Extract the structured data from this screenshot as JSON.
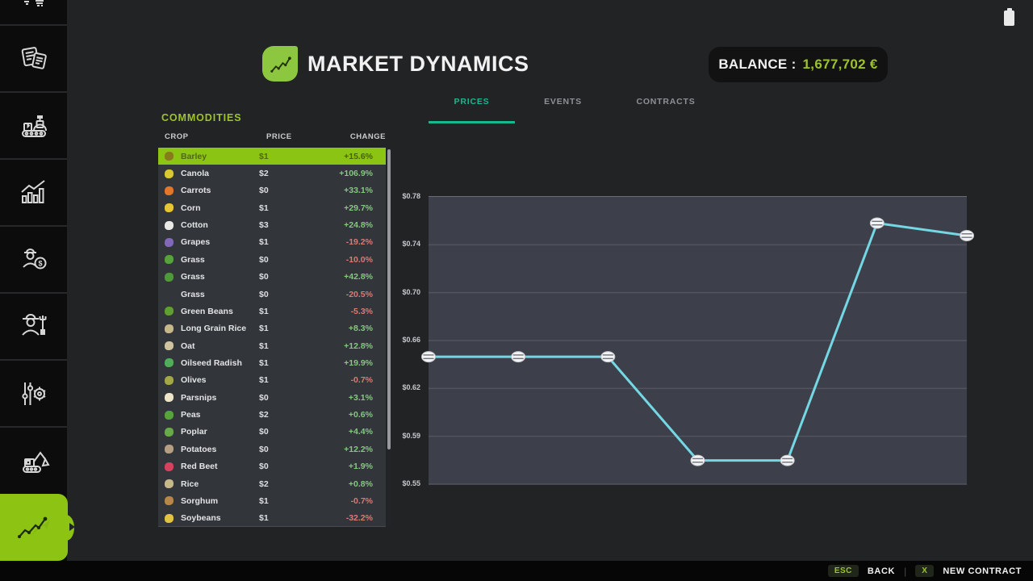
{
  "header": {
    "title": "MARKET DYNAMICS",
    "balance_label": "BALANCE :",
    "balance_value": "1,677,702 €",
    "title_icon": "market-chart-icon",
    "battery_icon": "battery-icon"
  },
  "tabs": [
    {
      "label": "PRICES",
      "active": true
    },
    {
      "label": "EVENTS",
      "active": false
    },
    {
      "label": "CONTRACTS",
      "active": false
    }
  ],
  "sidebar": {
    "items": [
      {
        "icon": "cropped-top-icon",
        "active": false
      },
      {
        "icon": "documents-icon",
        "active": false
      },
      {
        "icon": "production-icon",
        "active": false
      },
      {
        "icon": "statistics-icon",
        "active": false
      },
      {
        "icon": "sales-icon",
        "active": false
      },
      {
        "icon": "farmer-icon",
        "active": false
      },
      {
        "icon": "settings-icon",
        "active": false
      },
      {
        "icon": "excavator-icon",
        "active": false
      },
      {
        "icon": "market-icon",
        "active": true
      }
    ]
  },
  "commodities": {
    "heading": "COMMODITIES",
    "columns": {
      "crop": "CROP",
      "price": "PRICE",
      "change": "CHANGE"
    },
    "rows": [
      {
        "crop": "Barley",
        "price": "$1",
        "change": "+15.6%",
        "icon": "barley-icon",
        "icon_color": "#8a7a1e",
        "selected": true
      },
      {
        "crop": "Canola",
        "price": "$2",
        "change": "+106.9%",
        "icon": "canola-icon",
        "icon_color": "#d9c832"
      },
      {
        "crop": "Carrots",
        "price": "$0",
        "change": "+33.1%",
        "icon": "carrot-icon",
        "icon_color": "#e2762a"
      },
      {
        "crop": "Corn",
        "price": "$1",
        "change": "+29.7%",
        "icon": "corn-icon",
        "icon_color": "#e8c531"
      },
      {
        "crop": "Cotton",
        "price": "$3",
        "change": "+24.8%",
        "icon": "cotton-icon",
        "icon_color": "#e9e9e6"
      },
      {
        "crop": "Grapes",
        "price": "$1",
        "change": "-19.2%",
        "icon": "grapes-icon",
        "icon_color": "#8268b8"
      },
      {
        "crop": "Grass",
        "price": "$0",
        "change": "-10.0%",
        "icon": "grass-icon",
        "icon_color": "#55a33c"
      },
      {
        "crop": "Grass",
        "price": "$0",
        "change": "+42.8%",
        "icon": "grass-icon",
        "icon_color": "#4f9a38"
      },
      {
        "crop": "Grass",
        "price": "$0",
        "change": "-20.5%",
        "icon": null,
        "icon_color": null
      },
      {
        "crop": "Green Beans",
        "price": "$1",
        "change": "-5.3%",
        "icon": "green-beans-icon",
        "icon_color": "#5f9e33"
      },
      {
        "crop": "Long Grain Rice",
        "price": "$1",
        "change": "+8.3%",
        "icon": "long-grain-rice-icon",
        "icon_color": "#c7b88a"
      },
      {
        "crop": "Oat",
        "price": "$1",
        "change": "+12.8%",
        "icon": "oat-icon",
        "icon_color": "#cfc3a0"
      },
      {
        "crop": "Oilseed Radish",
        "price": "$1",
        "change": "+19.9%",
        "icon": "oilseed-radish-icon",
        "icon_color": "#4fae57"
      },
      {
        "crop": "Olives",
        "price": "$1",
        "change": "-0.7%",
        "icon": "olives-icon",
        "icon_color": "#a3a845"
      },
      {
        "crop": "Parsnips",
        "price": "$0",
        "change": "+3.1%",
        "icon": "parsnip-icon",
        "icon_color": "#ece5c8"
      },
      {
        "crop": "Peas",
        "price": "$2",
        "change": "+0.6%",
        "icon": "peas-icon",
        "icon_color": "#56a53b"
      },
      {
        "crop": "Poplar",
        "price": "$0",
        "change": "+4.4%",
        "icon": "poplar-icon",
        "icon_color": "#69aa48"
      },
      {
        "crop": "Potatoes",
        "price": "$0",
        "change": "+12.2%",
        "icon": "potato-icon",
        "icon_color": "#b59f82"
      },
      {
        "crop": "Red Beet",
        "price": "$0",
        "change": "+1.9%",
        "icon": "red-beet-icon",
        "icon_color": "#d8415d"
      },
      {
        "crop": "Rice",
        "price": "$2",
        "change": "+0.8%",
        "icon": "rice-icon",
        "icon_color": "#c7b88a"
      },
      {
        "crop": "Sorghum",
        "price": "$1",
        "change": "-0.7%",
        "icon": "sorghum-icon",
        "icon_color": "#b9864a"
      },
      {
        "crop": "Soybeans",
        "price": "$1",
        "change": "-32.2%",
        "icon": "soybeans-icon",
        "icon_color": "#e3c43e"
      }
    ]
  },
  "chart_data": {
    "type": "line",
    "title": "",
    "xlabel": "",
    "ylabel": "",
    "series": [
      {
        "name": "Barley price",
        "values": [
          0.652,
          0.652,
          0.652,
          0.569,
          0.569,
          0.759,
          0.749
        ]
      }
    ],
    "ylim": [
      0.55,
      0.78
    ],
    "yticks": [
      "$0.78",
      "$0.74",
      "$0.70",
      "$0.66",
      "$0.62",
      "$0.59",
      "$0.55"
    ],
    "grid": true,
    "legend": false,
    "line_color": "#74d7e4",
    "marker": "coin-stack"
  },
  "footer": {
    "esc_key": "ESC",
    "back_label": "BACK",
    "divider": "|",
    "x_key": "X",
    "new_contract_label": "NEW CONTRACT"
  },
  "colors": {
    "accent_green": "#8dc414",
    "tab_active": "#17b890",
    "positive": "#85c87f",
    "negative": "#dd7a72",
    "chart_line": "#74d7e4",
    "plot_bg": "#3d404a"
  }
}
